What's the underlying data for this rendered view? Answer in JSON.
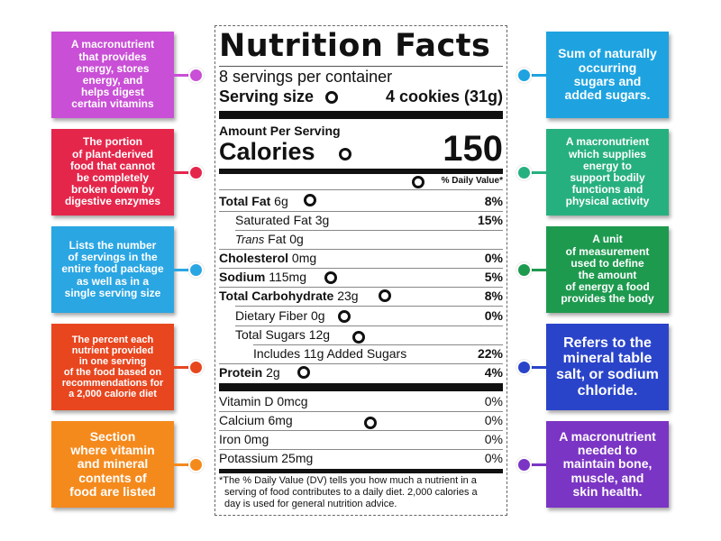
{
  "label": {
    "title": "Nutrition Facts",
    "servings_per_container": "8 servings per container",
    "serving_size_label": "Serving size",
    "serving_size_value": "4 cookies (31g)",
    "amount_per_serving": "Amount Per Serving",
    "calories_label": "Calories",
    "calories_value": "150",
    "daily_value_header": "% Daily Value*",
    "nutrients": [
      {
        "bold": "Total Fat",
        "rest": " 6g",
        "dv": "8%"
      },
      {
        "bold": "",
        "rest": "Saturated Fat 3g",
        "dv": "15%"
      },
      {
        "italic": "Trans",
        "rest": " Fat 0g",
        "dv": ""
      },
      {
        "bold": "Cholesterol",
        "rest": " 0mg",
        "dv": "0%"
      },
      {
        "bold": "Sodium",
        "rest": " 115mg",
        "dv": "5%"
      },
      {
        "bold": "Total Carbohydrate",
        "rest": " 23g",
        "dv": "8%"
      },
      {
        "bold": "",
        "rest": "Dietary Fiber 0g",
        "dv": "0%"
      },
      {
        "bold": "",
        "rest": "Total Sugars 12g",
        "dv": ""
      },
      {
        "bold": "",
        "rest": "Includes 11g Added Sugars",
        "dv": "22%"
      },
      {
        "bold": "Protein",
        "rest": " 2g",
        "dv": "4%"
      }
    ],
    "vitamins": [
      {
        "name": "Vitamin D 0mcg",
        "dv": "0%"
      },
      {
        "name": "Calcium 6mg",
        "dv": "0%"
      },
      {
        "name": "Iron 0mg",
        "dv": "0%"
      },
      {
        "name": "Potassium 25mg",
        "dv": "0%"
      }
    ],
    "footnote_1": "*The % Daily Value (DV) tells you how much a nutrient in a",
    "footnote_2": "serving of food contributes to a daily diet. 2,000 calories a",
    "footnote_3": "day is used for general nutrition advice."
  },
  "cards_left": [
    {
      "lines": [
        "A macronutrient",
        "that provides",
        "energy, stores",
        "energy, and",
        "helps digest",
        "certain vitamins"
      ],
      "color": "#c94fd6"
    },
    {
      "lines": [
        "The portion",
        "of plant-derived",
        "food that cannot",
        "be completely",
        "broken down by",
        "digestive enzymes"
      ],
      "color": "#e5264b"
    },
    {
      "lines": [
        "Lists the number",
        "of servings in the",
        "entire food package",
        "as well as in a",
        "single serving size"
      ],
      "color": "#2aa6e3"
    },
    {
      "lines": [
        "The percent each",
        "nutrient provided",
        "in one serving",
        "of the food based on",
        "recommendations for",
        "a 2,000 calorie diet"
      ],
      "color": "#e8461f"
    },
    {
      "lines": [
        "Section",
        "where vitamin",
        "and mineral",
        "contents of",
        "food are listed"
      ],
      "color": "#f58a1c"
    }
  ],
  "cards_right": [
    {
      "lines": [
        "Sum of naturally",
        "occurring",
        "sugars and",
        "added sugars."
      ],
      "color": "#1ea3e0"
    },
    {
      "lines": [
        "A macronutrient",
        "which supplies",
        "energy to",
        "support bodily",
        "functions and",
        "physical activity"
      ],
      "color": "#27b07f"
    },
    {
      "lines": [
        "A unit",
        "of measurement",
        "used to define",
        "the amount",
        "of energy a food",
        "provides the body"
      ],
      "color": "#1e9a4f"
    },
    {
      "lines": [
        "Refers to the",
        "mineral table",
        "salt, or sodium",
        "chloride."
      ],
      "color": "#2a44c9"
    },
    {
      "lines": [
        "A macronutrient",
        "needed to",
        "maintain bone,",
        "muscle, and",
        "skin health."
      ],
      "color": "#7b35c4"
    }
  ]
}
